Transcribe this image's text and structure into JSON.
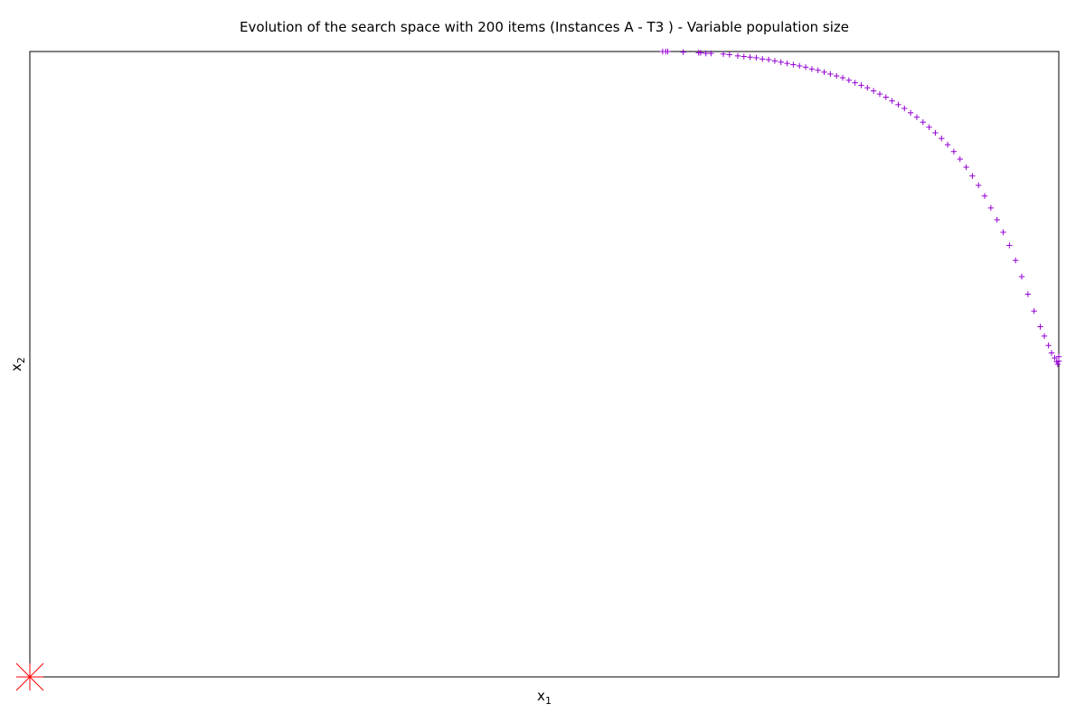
{
  "chart_data": {
    "type": "scatter",
    "title": "Evolution of the search space with 200 items (Instances A - T3 ) - Variable population size",
    "xlabel": "x",
    "xlabel_sub": "1",
    "ylabel": "x",
    "ylabel_sub": "2",
    "xlim": [
      0,
      1
    ],
    "ylim": [
      0,
      1
    ],
    "grid": false,
    "legend": "none",
    "colors": {
      "population": "#9400d3",
      "reference": "#ff0000"
    },
    "markers": {
      "population": "plus",
      "reference": "star"
    },
    "series": [
      {
        "x": [
          0.615,
          0.618,
          0.62,
          0.635,
          0.65,
          0.652,
          0.657,
          0.662,
          0.674,
          0.68,
          0.688,
          0.694,
          0.7,
          0.706,
          0.712,
          0.718,
          0.724,
          0.73,
          0.736,
          0.742,
          0.748,
          0.754,
          0.76,
          0.766,
          0.772,
          0.778,
          0.784,
          0.79,
          0.796,
          0.802,
          0.808,
          0.814,
          0.82,
          0.826,
          0.832,
          0.838,
          0.844,
          0.85,
          0.856,
          0.862,
          0.868,
          0.874,
          0.88,
          0.886,
          0.892,
          0.898,
          0.904,
          0.91,
          0.916,
          0.922,
          0.928,
          0.934,
          0.94,
          0.946,
          0.952,
          0.958,
          0.964,
          0.97,
          0.976,
          0.982,
          0.986,
          0.99,
          0.993,
          0.996,
          0.998,
          0.999,
          1.0,
          1.0
        ],
        "y": [
          1.0,
          1.0,
          1.0,
          0.999,
          0.998,
          0.998,
          0.997,
          0.997,
          0.996,
          0.995,
          0.993,
          0.992,
          0.991,
          0.99,
          0.988,
          0.987,
          0.985,
          0.983,
          0.981,
          0.979,
          0.977,
          0.975,
          0.972,
          0.97,
          0.967,
          0.964,
          0.961,
          0.958,
          0.954,
          0.95,
          0.946,
          0.942,
          0.937,
          0.932,
          0.927,
          0.921,
          0.915,
          0.909,
          0.902,
          0.895,
          0.887,
          0.879,
          0.87,
          0.861,
          0.851,
          0.84,
          0.828,
          0.815,
          0.801,
          0.786,
          0.769,
          0.75,
          0.731,
          0.711,
          0.69,
          0.666,
          0.64,
          0.612,
          0.585,
          0.56,
          0.545,
          0.53,
          0.518,
          0.51,
          0.504,
          0.5,
          0.505,
          0.512
        ]
      },
      {
        "x": [
          0
        ],
        "y": [
          0
        ]
      }
    ]
  }
}
